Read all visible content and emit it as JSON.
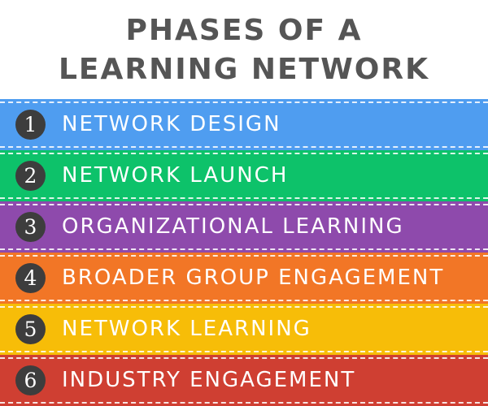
{
  "title": {
    "line1": "PHASES OF A",
    "line2": "LEARNING NETWORK"
  },
  "phases": [
    {
      "number": "1",
      "label": "NETWORK DESIGN",
      "color": "#4f9df0"
    },
    {
      "number": "2",
      "label": "NETWORK LAUNCH",
      "color": "#0dc26a"
    },
    {
      "number": "3",
      "label": "ORGANIZATIONAL LEARNING",
      "color": "#8e4aac"
    },
    {
      "number": "4",
      "label": "BROADER GROUP ENGAGEMENT",
      "color": "#f27626"
    },
    {
      "number": "5",
      "label": "NETWORK LEARNING",
      "color": "#f7bd08"
    },
    {
      "number": "6",
      "label": "INDUSTRY ENGAGEMENT",
      "color": "#cf3f32"
    }
  ]
}
